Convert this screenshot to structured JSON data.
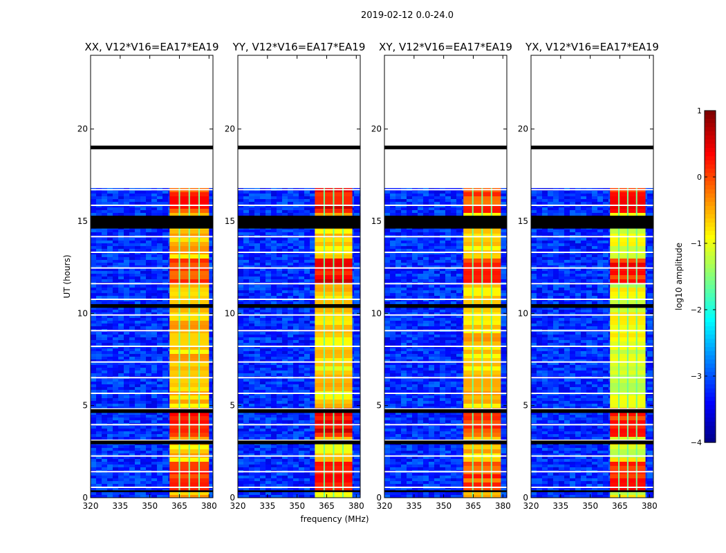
{
  "suptitle": "2019-02-12 0.0-24.0",
  "chart_data": {
    "type": "heatmap",
    "title": "2019-02-12 0.0-24.0",
    "xlabel": "frequency (MHz)",
    "ylabel": "UT (hours)",
    "xlim": [
      320,
      382
    ],
    "ylim": [
      0,
      24
    ],
    "x_ticks": [
      320,
      335,
      350,
      365,
      380
    ],
    "y_ticks": [
      0,
      5,
      10,
      15,
      20
    ],
    "panels": [
      {
        "title": "XX, V12*V16=EA17*EA19",
        "band_start_mhz": 360,
        "band_end_mhz": 380,
        "band_level": -0.6,
        "hot_level": 0.1
      },
      {
        "title": "YY, V12*V16=EA17*EA19",
        "band_start_mhz": 359,
        "band_end_mhz": 378,
        "band_level": -0.7,
        "hot_level": 0.4
      },
      {
        "title": "XY, V12*V16=EA17*EA19",
        "band_start_mhz": 360,
        "band_end_mhz": 379,
        "band_level": -0.6,
        "hot_level": 0.0
      },
      {
        "title": "YX, V12*V16=EA17*EA19",
        "band_start_mhz": 360,
        "band_end_mhz": 378,
        "band_level": -1.0,
        "hot_level": 0.2
      }
    ],
    "data_hours": [
      0,
      16.8
    ],
    "gap_bands_hours": [
      [
        18.9,
        19.1
      ],
      [
        14.6,
        15.3
      ],
      [
        10.3,
        10.5
      ],
      [
        4.6,
        4.8
      ],
      [
        2.9,
        3.1
      ],
      [
        0.3,
        0.4
      ]
    ],
    "colorbar": {
      "label": "log10 amplitude",
      "min": -4,
      "max": 1,
      "ticks": [
        -4,
        -3,
        -2,
        -1,
        0,
        1
      ],
      "tick_labels": [
        "−4",
        "−3",
        "−2",
        "−1",
        "0",
        "1"
      ],
      "colormap": "jet"
    }
  }
}
